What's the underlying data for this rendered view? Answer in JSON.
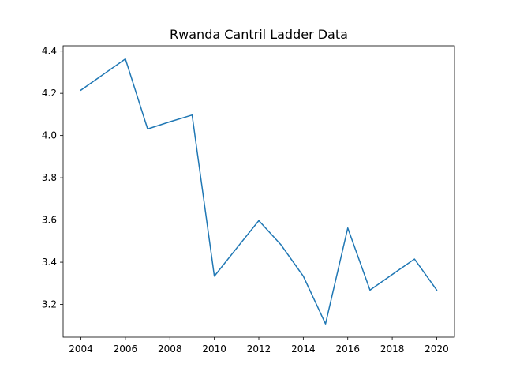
{
  "chart_data": {
    "type": "line",
    "title": "Rwanda Cantril Ladder Data",
    "xlabel": "",
    "ylabel": "",
    "x": [
      2004,
      2006,
      2007,
      2008,
      2009,
      2010,
      2011,
      2012,
      2013,
      2014,
      2015,
      2016,
      2017,
      2018,
      2019,
      2020
    ],
    "series": [
      {
        "values": [
          4.215,
          4.363,
          4.031,
          4.065,
          4.097,
          3.334,
          3.466,
          3.597,
          3.482,
          3.334,
          3.108,
          3.562,
          3.268,
          3.342,
          3.415,
          3.268
        ],
        "color": "#1f77b4"
      }
    ],
    "xlim": [
      2003.2,
      2020.8
    ],
    "ylim": [
      3.045,
      4.425
    ],
    "xticks": [
      2004,
      2006,
      2008,
      2010,
      2012,
      2014,
      2016,
      2018,
      2020
    ],
    "yticks": [
      3.2,
      3.4,
      3.6,
      3.8,
      4.0,
      4.2,
      4.4
    ],
    "ytick_labels": [
      "3.2",
      "3.4",
      "3.6",
      "3.8",
      "4.0",
      "4.2",
      "4.4"
    ],
    "grid": false,
    "legend": "none"
  }
}
